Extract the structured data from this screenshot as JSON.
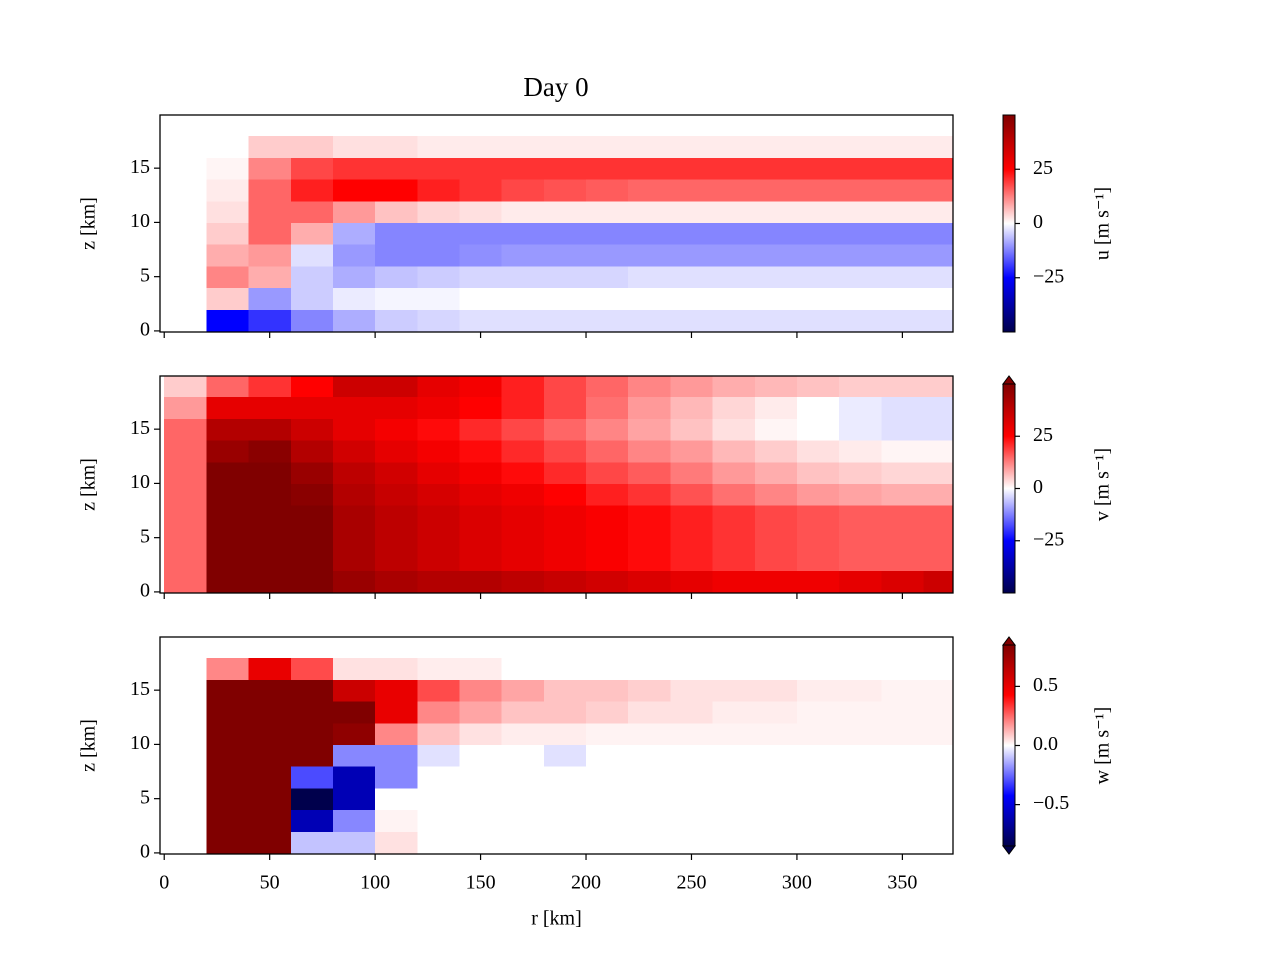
{
  "chart_data": [
    {
      "type": "heatmap",
      "title": "Day 0",
      "ylabel": "z [km]",
      "cbar_label": "u [m s⁻¹]",
      "cmap": "seismic",
      "clim": [
        -50,
        50
      ],
      "extend": "neither",
      "cticks": [
        {
          "value": -25,
          "label": "−25"
        },
        0,
        25
      ],
      "x": [
        10,
        30,
        50,
        70,
        90,
        110,
        130,
        150,
        170,
        190,
        210,
        230,
        250,
        270,
        290,
        310,
        330,
        350,
        370
      ],
      "y": [
        1,
        3,
        5,
        7,
        9,
        11,
        13,
        15,
        17,
        19
      ],
      "xlim": [
        -2,
        374
      ],
      "ylim": [
        -0.1,
        19.9
      ],
      "xticks": [
        0,
        50,
        100,
        150,
        200,
        250,
        300,
        350
      ],
      "yticks": [
        0,
        5,
        10,
        15
      ],
      "show_xticklabels": false,
      "values": [
        [
          0,
          -25,
          -20,
          -12,
          -8,
          -5,
          -4,
          -3,
          -3,
          -3,
          -3,
          -3,
          -3,
          -3,
          -3,
          -3,
          -3,
          -3,
          -3
        ],
        [
          0,
          5,
          -10,
          -5,
          -2,
          -1,
          -1,
          0,
          0,
          0,
          0,
          0,
          0,
          0,
          0,
          0,
          0,
          0,
          0
        ],
        [
          0,
          12,
          8,
          -5,
          -8,
          -6,
          -5,
          -4,
          -4,
          -4,
          -4,
          -3,
          -3,
          -3,
          -3,
          -3,
          -3,
          -3,
          -3
        ],
        [
          0,
          8,
          10,
          -3,
          -10,
          -12,
          -12,
          -11,
          -10,
          -10,
          -10,
          -10,
          -10,
          -10,
          -10,
          -10,
          -10,
          -10,
          -10
        ],
        [
          0,
          5,
          15,
          8,
          -8,
          -12,
          -12,
          -12,
          -12,
          -12,
          -12,
          -12,
          -12,
          -12,
          -12,
          -12,
          -12,
          -12,
          -12
        ],
        [
          0,
          3,
          15,
          15,
          10,
          6,
          4,
          3,
          2,
          2,
          2,
          2,
          2,
          2,
          2,
          2,
          2,
          2,
          2
        ],
        [
          0,
          2,
          15,
          22,
          25,
          25,
          22,
          20,
          18,
          17,
          16,
          15,
          15,
          15,
          15,
          15,
          15,
          15,
          15
        ],
        [
          0,
          1,
          12,
          18,
          20,
          20,
          20,
          20,
          20,
          20,
          20,
          20,
          20,
          20,
          20,
          20,
          20,
          20,
          20
        ],
        [
          0,
          0,
          5,
          5,
          3,
          3,
          2,
          2,
          2,
          2,
          2,
          2,
          2,
          2,
          2,
          2,
          2,
          2,
          2
        ],
        [
          0,
          0,
          0,
          0,
          0,
          0,
          0,
          0,
          0,
          0,
          0,
          0,
          0,
          0,
          0,
          0,
          0,
          0,
          0
        ]
      ]
    },
    {
      "type": "heatmap",
      "ylabel": "z [km]",
      "cbar_label": "v [m s⁻¹]",
      "cmap": "seismic",
      "clim": [
        -50,
        50
      ],
      "extend": "max",
      "cticks": [
        {
          "value": -25,
          "label": "−25"
        },
        0,
        25
      ],
      "x": [
        10,
        30,
        50,
        70,
        90,
        110,
        130,
        150,
        170,
        190,
        210,
        230,
        250,
        270,
        290,
        310,
        330,
        350,
        370
      ],
      "y": [
        1,
        3,
        5,
        7,
        9,
        11,
        13,
        15,
        17,
        19
      ],
      "xlim": [
        -2,
        374
      ],
      "ylim": [
        -0.1,
        19.9
      ],
      "xticks": [
        0,
        50,
        100,
        150,
        200,
        250,
        300,
        350
      ],
      "yticks": [
        0,
        5,
        10,
        15
      ],
      "show_xticklabels": false,
      "values": [
        [
          15,
          55,
          60,
          50,
          45,
          42,
          40,
          40,
          38,
          36,
          34,
          32,
          30,
          28,
          28,
          28,
          30,
          32,
          35
        ],
        [
          15,
          60,
          60,
          50,
          42,
          38,
          35,
          32,
          30,
          28,
          26,
          24,
          22,
          20,
          18,
          17,
          16,
          16,
          16
        ],
        [
          15,
          60,
          60,
          50,
          42,
          38,
          35,
          32,
          30,
          28,
          26,
          24,
          22,
          20,
          18,
          17,
          16,
          16,
          16
        ],
        [
          15,
          60,
          60,
          50,
          42,
          38,
          35,
          32,
          30,
          28,
          26,
          24,
          22,
          20,
          18,
          17,
          16,
          16,
          16
        ],
        [
          15,
          55,
          60,
          48,
          40,
          36,
          33,
          30,
          28,
          25,
          22,
          20,
          17,
          14,
          12,
          10,
          9,
          8,
          8
        ],
        [
          15,
          50,
          55,
          45,
          38,
          34,
          30,
          27,
          24,
          21,
          18,
          16,
          13,
          10,
          8,
          6,
          5,
          4,
          4
        ],
        [
          15,
          45,
          48,
          40,
          34,
          30,
          27,
          24,
          21,
          18,
          15,
          12,
          10,
          7,
          5,
          3,
          2,
          1,
          1
        ],
        [
          15,
          40,
          40,
          35,
          30,
          27,
          24,
          21,
          18,
          15,
          12,
          9,
          6,
          3,
          1,
          0,
          -2,
          -3,
          -3
        ],
        [
          10,
          30,
          30,
          30,
          30,
          30,
          28,
          25,
          22,
          18,
          14,
          10,
          7,
          4,
          2,
          0,
          -2,
          -3,
          -3
        ],
        [
          5,
          15,
          20,
          25,
          35,
          35,
          30,
          27,
          22,
          18,
          15,
          12,
          10,
          8,
          7,
          6,
          5,
          5,
          5
        ]
      ]
    },
    {
      "type": "heatmap",
      "ylabel": "z [km]",
      "xlabel": "r [km]",
      "cbar_label": "w [m s⁻¹]",
      "cmap": "seismic",
      "clim": [
        -0.85,
        0.85
      ],
      "extend": "both",
      "cticks": [
        {
          "value": -0.5,
          "label": "−0.5"
        },
        {
          "value": 0,
          "label": "0.0"
        },
        0.5
      ],
      "x": [
        10,
        30,
        50,
        70,
        90,
        110,
        130,
        150,
        170,
        190,
        210,
        230,
        250,
        270,
        290,
        310,
        330,
        350,
        370
      ],
      "y": [
        1,
        3,
        5,
        7,
        9,
        11,
        13,
        15,
        17,
        19
      ],
      "xlim": [
        -2,
        374
      ],
      "ylim": [
        -0.1,
        19.9
      ],
      "xticks": [
        0,
        50,
        100,
        150,
        200,
        250,
        300,
        350
      ],
      "yticks": [
        0,
        5,
        10,
        15
      ],
      "show_xticklabels": true,
      "values": [
        [
          0,
          1,
          1,
          -0.1,
          -0.1,
          0.05,
          0,
          0,
          0,
          0,
          0,
          0,
          0,
          0,
          0,
          0,
          0,
          0,
          0
        ],
        [
          0,
          1,
          1,
          -0.6,
          -0.2,
          0.02,
          0,
          0,
          0,
          0,
          0,
          0,
          0,
          0,
          0,
          0,
          0,
          0,
          0
        ],
        [
          0,
          1,
          1,
          -0.9,
          -0.6,
          0,
          0,
          0,
          0,
          0,
          0,
          0,
          0,
          0,
          0,
          0,
          0,
          0,
          0
        ],
        [
          0,
          1,
          1,
          -0.3,
          -0.6,
          -0.2,
          0,
          0,
          0,
          0,
          0,
          0,
          0,
          0,
          0,
          0,
          0,
          0,
          0
        ],
        [
          0,
          1,
          1,
          0.9,
          -0.2,
          -0.2,
          -0.05,
          0,
          0,
          -0.05,
          0,
          0,
          0,
          0,
          0,
          0,
          0,
          0,
          0
        ],
        [
          0,
          1,
          1,
          1,
          0.8,
          0.2,
          0.1,
          0.05,
          0.03,
          0.03,
          0.02,
          0.02,
          0.02,
          0.02,
          0.02,
          0.02,
          0.02,
          0.02,
          0.02
        ],
        [
          0,
          1,
          1,
          1,
          1,
          0.5,
          0.2,
          0.15,
          0.1,
          0.1,
          0.08,
          0.05,
          0.05,
          0.03,
          0.03,
          0.02,
          0.02,
          0.02,
          0.02
        ],
        [
          0,
          1,
          1,
          1,
          0.6,
          0.5,
          0.3,
          0.2,
          0.15,
          0.1,
          0.1,
          0.08,
          0.05,
          0.05,
          0.05,
          0.03,
          0.03,
          0.02,
          0.02
        ],
        [
          0,
          0.2,
          0.5,
          0.3,
          0.05,
          0.05,
          0.03,
          0.03,
          0,
          0,
          0,
          0,
          0,
          0,
          0,
          0,
          0,
          0,
          0
        ],
        [
          0,
          0,
          0,
          0,
          0,
          0,
          0,
          0,
          0,
          0,
          0,
          0,
          0,
          0,
          0,
          0,
          0,
          0,
          0
        ]
      ]
    }
  ]
}
